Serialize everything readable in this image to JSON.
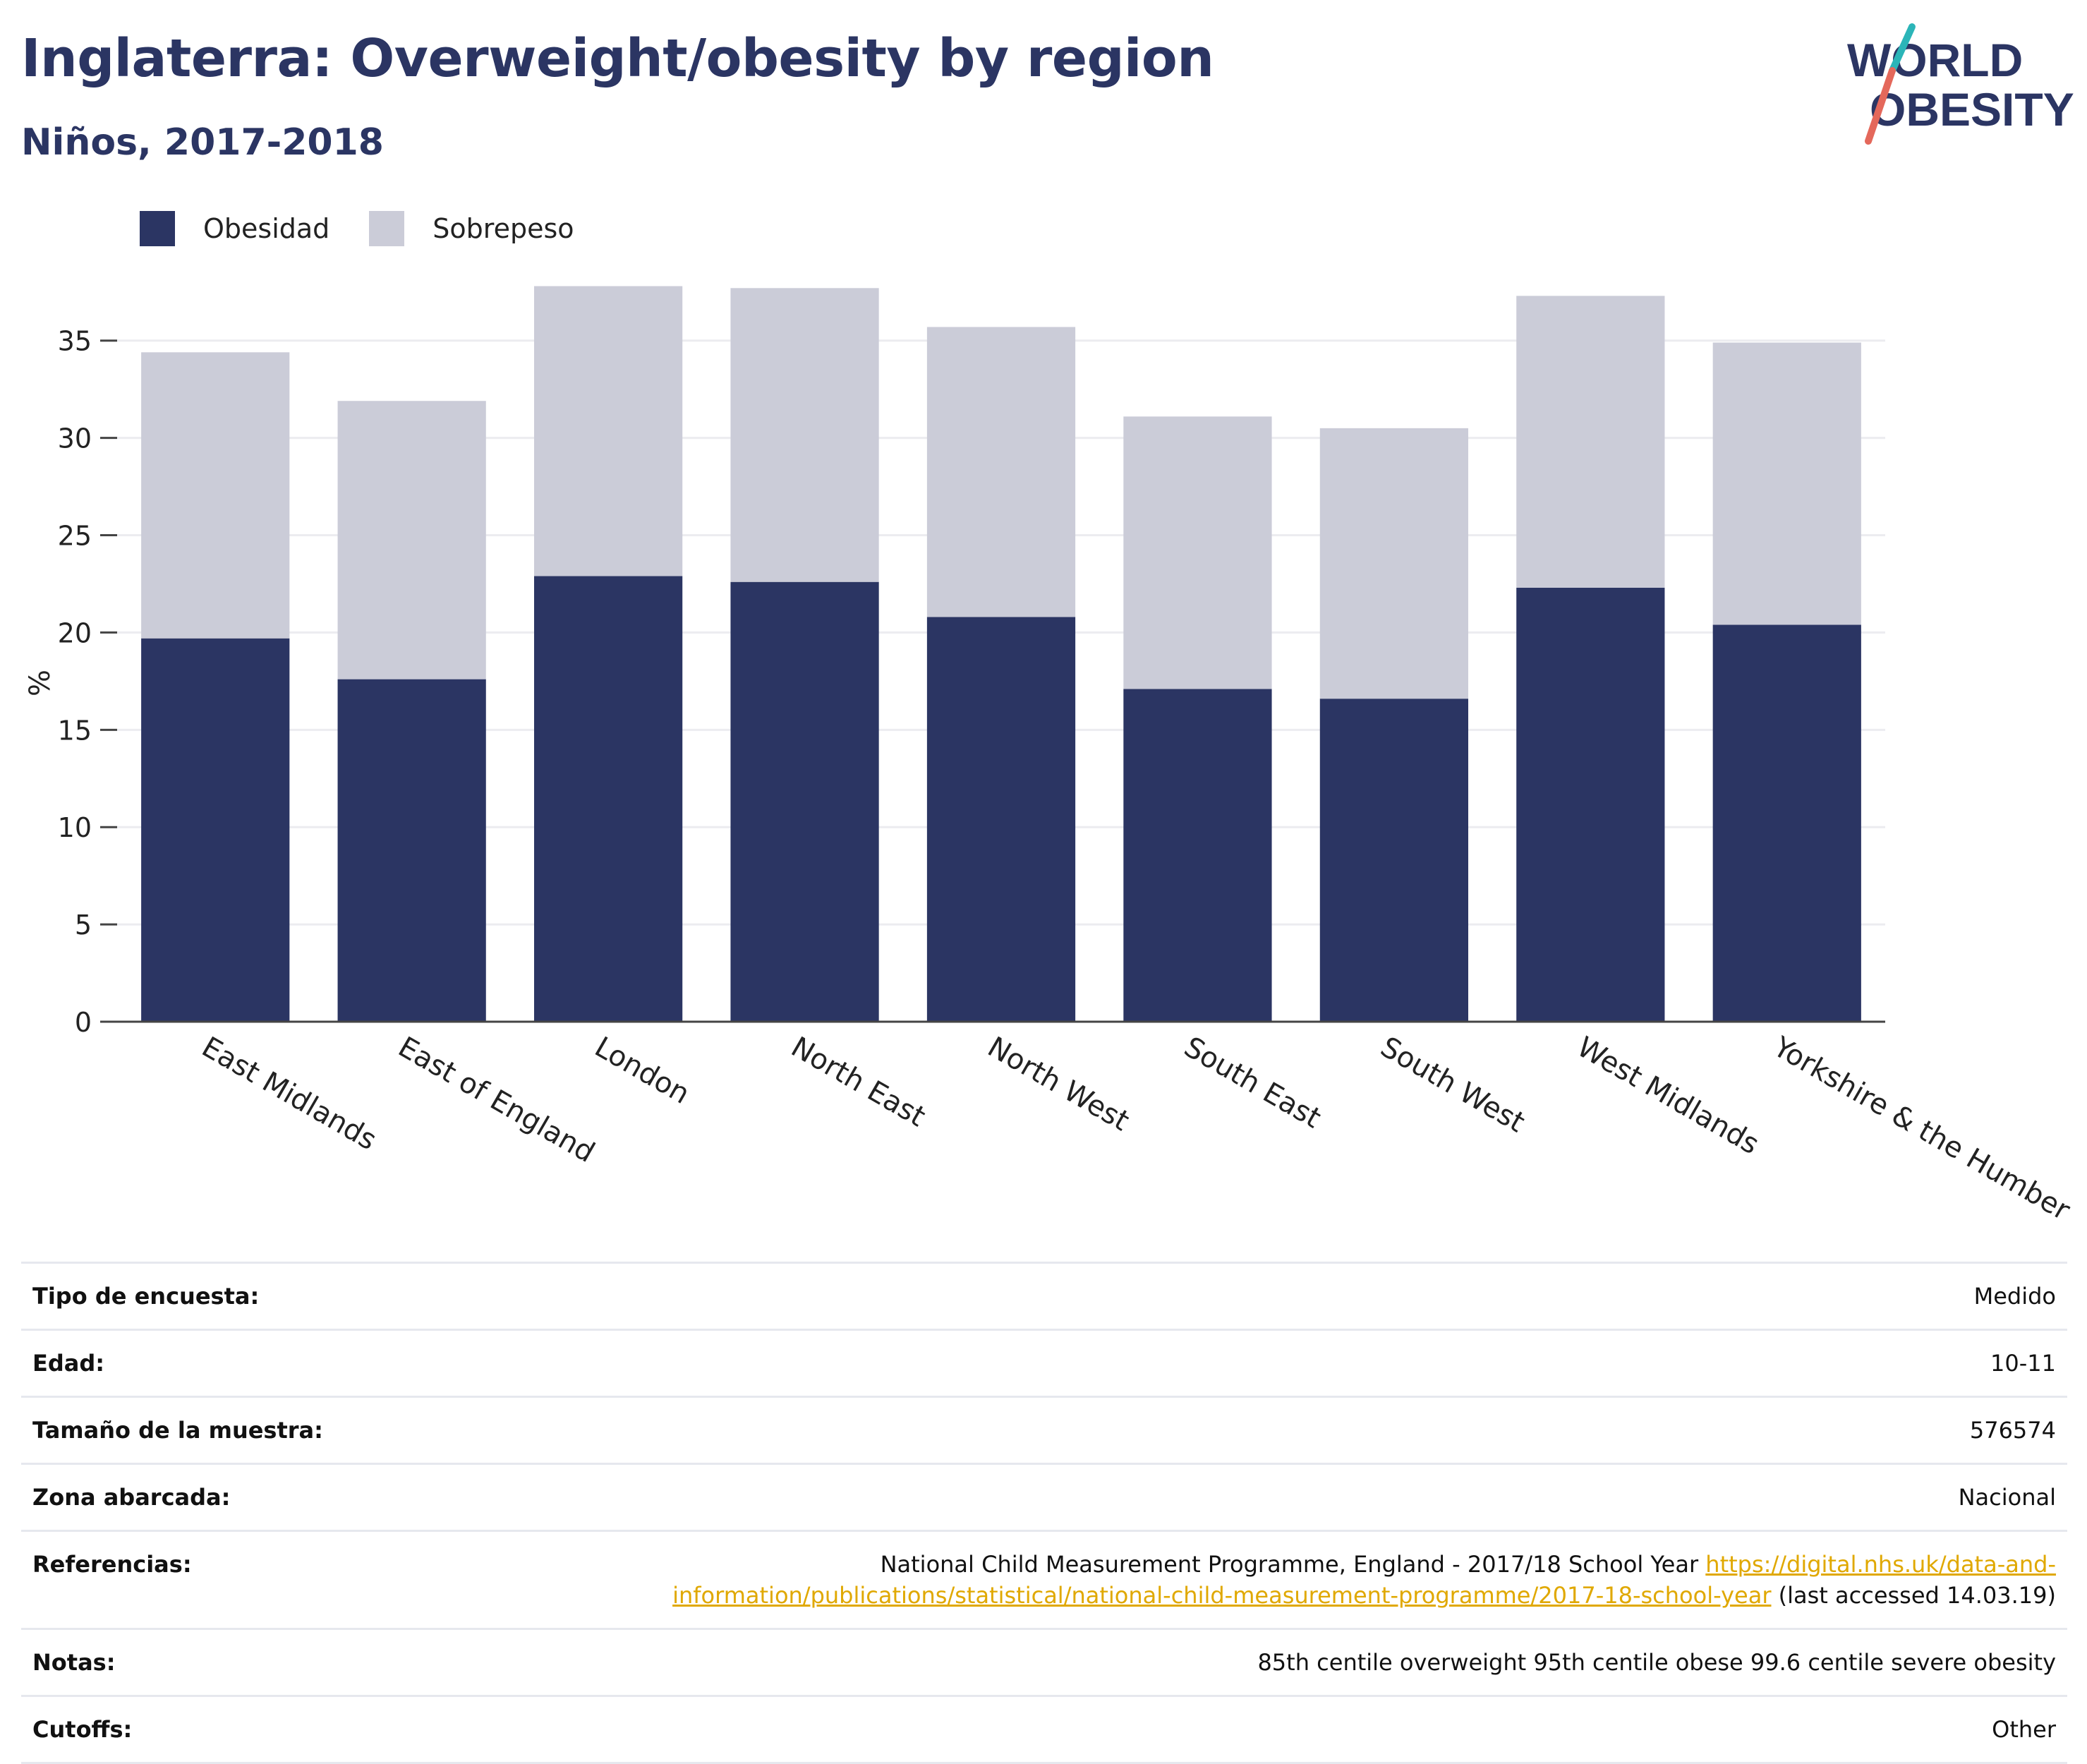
{
  "header": {
    "title": "Inglaterra: Overweight/obesity by region",
    "subtitle": "Niños, 2017-2018"
  },
  "logo": {
    "line1": "WORLD",
    "line2": "OBESITY",
    "text_color": "#2b3563",
    "slash_colors": [
      "#2bb5b8",
      "#e4685b"
    ]
  },
  "colors": {
    "obesidad": "#2b3563",
    "sobrepeso": "#cbccd8",
    "link": "#e0a800"
  },
  "chart_data": {
    "type": "bar",
    "stacked": true,
    "categories": [
      "East Midlands",
      "East of England",
      "London",
      "North East",
      "North West",
      "South East",
      "South West",
      "West Midlands",
      "Yorkshire & the Humber"
    ],
    "series": [
      {
        "name": "Obesidad",
        "values": [
          19.7,
          17.6,
          22.9,
          22.6,
          20.8,
          17.1,
          16.6,
          22.3,
          20.4
        ]
      },
      {
        "name": "Sobrepeso",
        "values": [
          14.7,
          14.3,
          14.9,
          15.1,
          14.9,
          14.0,
          13.9,
          15.0,
          14.5
        ]
      }
    ],
    "ylabel": "%",
    "ylim": [
      0,
      38
    ],
    "yticks": [
      0,
      5,
      10,
      15,
      20,
      25,
      30,
      35
    ],
    "grid": true,
    "legend_position": "top-left"
  },
  "meta": {
    "survey_type": {
      "label": "Tipo de encuesta:",
      "value": "Medido"
    },
    "age": {
      "label": "Edad:",
      "value": "10-11"
    },
    "sample_size": {
      "label": "Tamaño de la muestra:",
      "value": "576574"
    },
    "area": {
      "label": "Zona abarcada:",
      "value": "Nacional"
    },
    "references": {
      "label": "Referencias:",
      "text": "National Child Measurement Programme, England - 2017/18 School Year",
      "link_line1": "https://digital.nhs.uk/data-and-",
      "link_line2": "information/publications/statistical/national-child-measurement-programme/2017-18-school-year",
      "suffix": "(last accessed 14.03.19)"
    },
    "notes": {
      "label": "Notas:",
      "value": "85th centile overweight 95th centile obese 99.6 centile severe obesity"
    },
    "cutoffs": {
      "label": "Cutoffs:",
      "value": "Other"
    }
  }
}
